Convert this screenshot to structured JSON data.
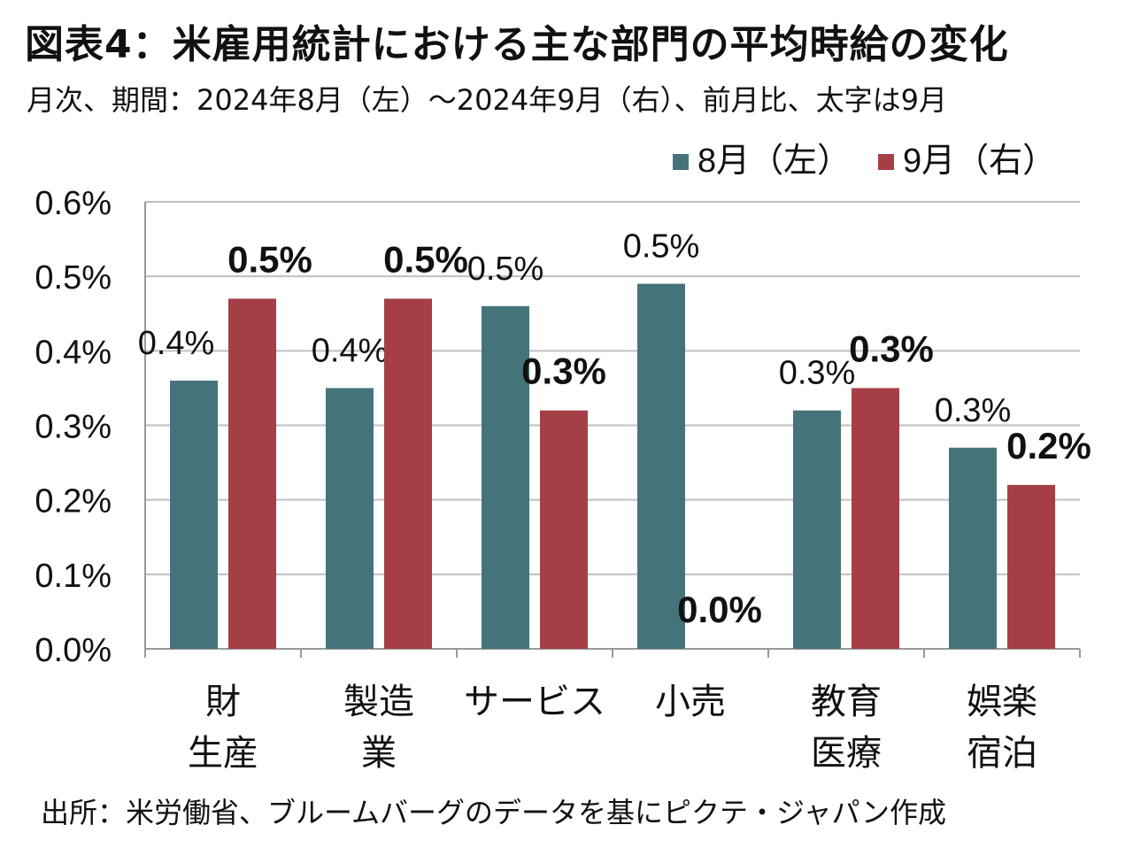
{
  "title": "図表4：米雇用統計における主な部門の平均時給の変化",
  "subtitle": "月次、期間：2024年8月（左）～2024年9月（右）、前月比、太字は9月",
  "source": "出所：米労働省、ブルームバーグのデータを基にピクテ・ジャパン作成",
  "colors": {
    "aug": "#44747A",
    "sep": "#A43F46",
    "grid": "#BFBFBF",
    "axis": "#999999",
    "text": "#111111"
  },
  "chart_data": {
    "type": "bar",
    "categories": [
      [
        "財",
        "生産"
      ],
      [
        "製造",
        "業"
      ],
      [
        "サービス"
      ],
      [
        "小売"
      ],
      [
        "教育",
        "医療"
      ],
      [
        "娯楽",
        "宿泊"
      ]
    ],
    "series": [
      {
        "name": "8月（左）",
        "values": [
          0.36,
          0.35,
          0.46,
          0.49,
          0.32,
          0.27
        ],
        "labels": [
          "0.4%",
          "0.4%",
          "0.5%",
          "0.5%",
          "0.3%",
          "0.3%"
        ],
        "bold": false
      },
      {
        "name": "9月（右）",
        "values": [
          0.47,
          0.47,
          0.32,
          0.0,
          0.35,
          0.22
        ],
        "labels": [
          "0.5%",
          "0.5%",
          "0.3%",
          "0.0%",
          "0.3%",
          "0.2%"
        ],
        "bold": true
      }
    ],
    "ylim": [
      0,
      0.6
    ],
    "yticks": [
      0,
      0.1,
      0.2,
      0.3,
      0.4,
      0.5,
      0.6
    ],
    "ytick_labels": [
      "0.0%",
      "0.1%",
      "0.2%",
      "0.3%",
      "0.4%",
      "0.5%",
      "0.6%"
    ],
    "grid": true,
    "legend_position": "top-right"
  }
}
